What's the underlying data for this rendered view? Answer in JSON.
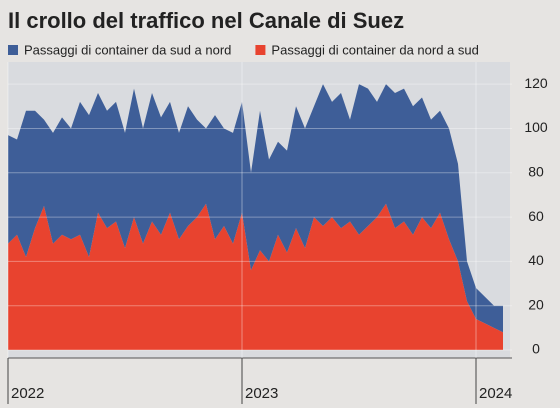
{
  "chart_data": {
    "type": "area",
    "stacked": true,
    "title": "Il crollo del traffico nel Canale di Suez",
    "categories": [
      "2022",
      null,
      null,
      null,
      null,
      null,
      null,
      null,
      null,
      null,
      null,
      null,
      null,
      null,
      null,
      null,
      null,
      null,
      null,
      null,
      null,
      null,
      null,
      null,
      null,
      null,
      "2023",
      null,
      null,
      null,
      null,
      null,
      null,
      null,
      null,
      null,
      null,
      null,
      null,
      null,
      null,
      null,
      null,
      null,
      null,
      null,
      null,
      null,
      null,
      null,
      null,
      null,
      "2024",
      null,
      null,
      null
    ],
    "series": [
      {
        "name": "Passaggi di container da nord a sud",
        "color": "#e8432f",
        "values": [
          48,
          52,
          42,
          55,
          65,
          48,
          52,
          50,
          52,
          42,
          62,
          55,
          58,
          46,
          60,
          48,
          58,
          52,
          62,
          50,
          56,
          60,
          66,
          50,
          56,
          48,
          62,
          36,
          45,
          40,
          52,
          44,
          55,
          46,
          60,
          56,
          60,
          55,
          58,
          52,
          56,
          60,
          66,
          55,
          58,
          52,
          60,
          55,
          62,
          50,
          40,
          22,
          14,
          12,
          10,
          8
        ]
      },
      {
        "name": "Passaggi di container da sud a nord",
        "color": "#3e5e98",
        "values": [
          49,
          43,
          66,
          53,
          39,
          50,
          53,
          50,
          60,
          64,
          54,
          53,
          54,
          52,
          58,
          52,
          58,
          53,
          50,
          48,
          54,
          44,
          34,
          56,
          44,
          50,
          50,
          44,
          63,
          46,
          42,
          46,
          55,
          54,
          50,
          64,
          52,
          61,
          46,
          68,
          62,
          52,
          54,
          61,
          60,
          58,
          54,
          49,
          46,
          50,
          44,
          18,
          14,
          12,
          10,
          12
        ]
      }
    ],
    "legend_order": [
      1,
      0
    ],
    "ylim": [
      0,
      130
    ],
    "yticks": [
      0,
      20,
      40,
      60,
      80,
      100,
      120
    ],
    "grid": true
  }
}
